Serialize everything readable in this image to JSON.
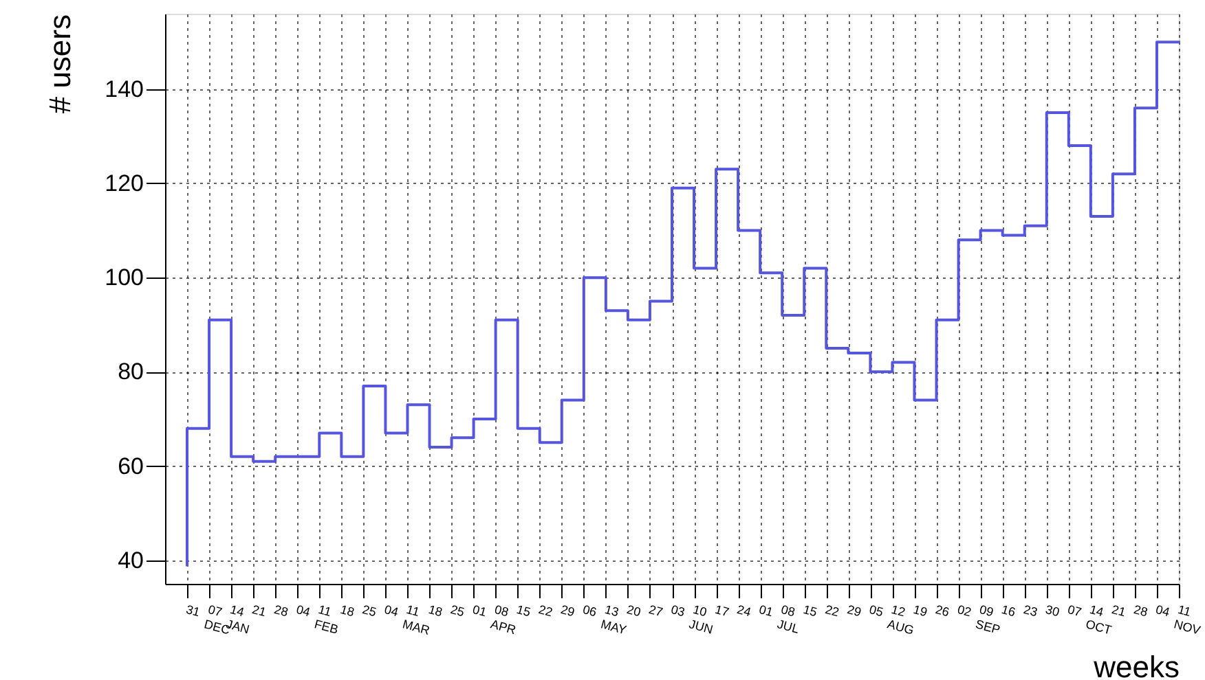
{
  "chart_data": {
    "type": "step",
    "xlabel": "weeks",
    "ylabel": "# users",
    "categories": [
      "31",
      "07 DEC",
      "14 JAN",
      "21",
      "28",
      "04",
      "11 FEB",
      "18",
      "25",
      "04",
      "11 MAR",
      "18",
      "25",
      "01",
      "08 APR",
      "15",
      "22",
      "29",
      "06",
      "13 MAY",
      "20",
      "27",
      "03",
      "10 JUN",
      "17",
      "24",
      "01",
      "08 JUL",
      "15",
      "22",
      "29",
      "05",
      "12 AUG",
      "19",
      "26",
      "02",
      "09 SEP",
      "16",
      "23",
      "30",
      "07",
      "14 OCT",
      "21",
      "28",
      "04",
      "11 NOV"
    ],
    "series": [
      {
        "color": "#5555dd",
        "values": [
          39,
          68,
          91,
          62,
          61,
          62,
          62,
          67,
          62,
          77,
          67,
          73,
          64,
          66,
          70,
          91,
          68,
          65,
          74,
          100,
          93,
          91,
          95,
          119,
          102,
          123,
          110,
          101,
          92,
          102,
          85,
          84,
          80,
          82,
          74,
          91,
          108,
          110,
          109,
          111,
          135,
          128,
          113,
          122,
          136,
          150
        ]
      }
    ],
    "ylim": [
      35,
      156
    ],
    "yticks": [
      40,
      60,
      80,
      100,
      120,
      140
    ],
    "grid": true
  }
}
